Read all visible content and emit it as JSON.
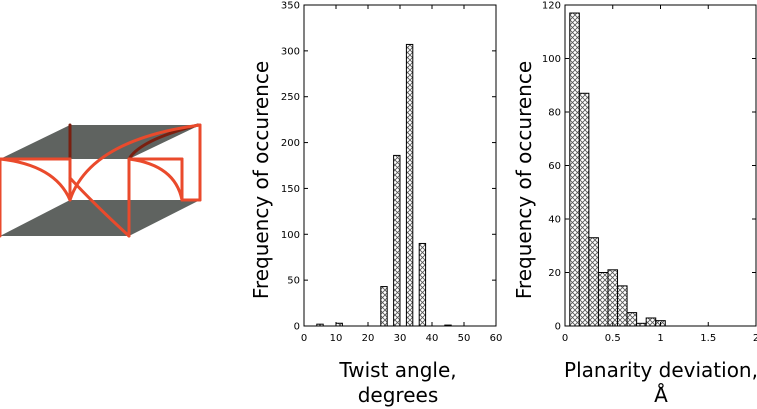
{
  "chart_data": [
    {
      "type": "bar",
      "xlabel_lines": [
        "Twist angle,",
        "degrees"
      ],
      "ylabel": "Frequency of occurence",
      "xlim": [
        0,
        60
      ],
      "ylim": [
        0,
        350
      ],
      "xticks": [
        0,
        10,
        20,
        30,
        40,
        50,
        60
      ],
      "yticks": [
        0,
        50,
        100,
        150,
        200,
        250,
        300,
        350
      ],
      "bin_width": 2,
      "fill": "crosshatch",
      "bins": [
        {
          "x": 5,
          "value": 2
        },
        {
          "x": 11,
          "value": 3
        },
        {
          "x": 25,
          "value": 43
        },
        {
          "x": 29,
          "value": 186
        },
        {
          "x": 33,
          "value": 307
        },
        {
          "x": 37,
          "value": 90
        },
        {
          "x": 45,
          "value": 1
        }
      ]
    },
    {
      "type": "bar",
      "xlabel_lines": [
        "Planarity deviation,",
        "Å"
      ],
      "ylabel": "Frequency of occurence",
      "xlim": [
        0,
        2
      ],
      "ylim": [
        0,
        120
      ],
      "xticks": [
        0,
        0.5,
        1,
        1.5,
        2
      ],
      "ytick_values": [
        0,
        20,
        40,
        60,
        80,
        100,
        120
      ],
      "ytick_labels": [
        "0",
        "20",
        "40",
        "60",
        "80",
        "100",
        "120"
      ],
      "xtick_labels": [
        "0",
        "0.5",
        "1",
        "1.5",
        "2"
      ],
      "bin_width": 0.1,
      "fill": "crosshatch",
      "bins": [
        {
          "x": 0.1,
          "value": 117
        },
        {
          "x": 0.2,
          "value": 87
        },
        {
          "x": 0.3,
          "value": 33
        },
        {
          "x": 0.4,
          "value": 20
        },
        {
          "x": 0.5,
          "value": 21
        },
        {
          "x": 0.6,
          "value": 15
        },
        {
          "x": 0.7,
          "value": 5
        },
        {
          "x": 0.8,
          "value": 1
        },
        {
          "x": 0.9,
          "value": 3
        },
        {
          "x": 1.0,
          "value": 2
        }
      ]
    }
  ],
  "diagram": {
    "plate_color": "#5f6360",
    "line_color": "#ea4a2c",
    "dark_line_color": "#7a1f10"
  }
}
